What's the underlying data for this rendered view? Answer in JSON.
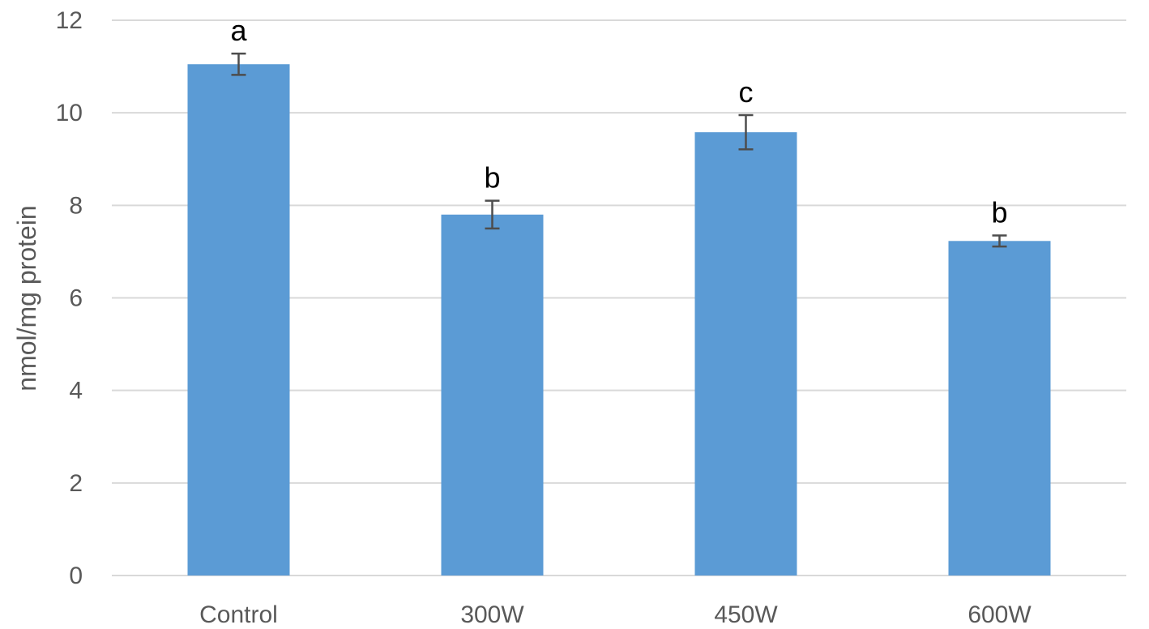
{
  "chart_data": {
    "type": "bar",
    "title": "",
    "xlabel": "",
    "ylabel": "nmol/mg protein",
    "categories": [
      "Control",
      "300W",
      "450W",
      "600W"
    ],
    "values": [
      11.05,
      7.8,
      9.58,
      7.23
    ],
    "error": [
      0.23,
      0.3,
      0.37,
      0.12
    ],
    "significance_labels": [
      "a",
      "b",
      "c",
      "b"
    ],
    "ylim": [
      0,
      12
    ],
    "yticks": [
      0,
      2,
      4,
      6,
      8,
      10,
      12
    ],
    "grid": true,
    "legend": "none",
    "colors": {
      "bar": "#5b9bd5",
      "errorbar": "#4d4d4d",
      "grid": "#d9d9d9",
      "tick_text": "#595959",
      "label_text": "#000000"
    }
  }
}
